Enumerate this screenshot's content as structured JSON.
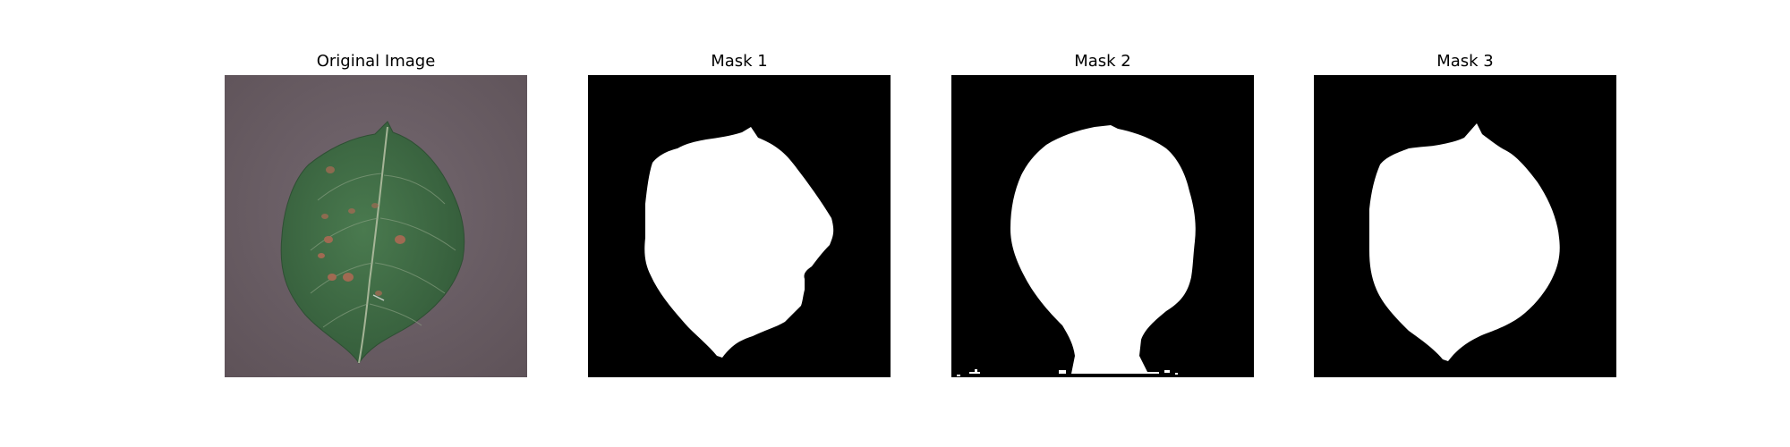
{
  "panels": [
    {
      "title": "Original Image",
      "kind": "photo"
    },
    {
      "title": "Mask 1",
      "kind": "mask"
    },
    {
      "title": "Mask 2",
      "kind": "mask"
    },
    {
      "title": "Mask 3",
      "kind": "mask"
    }
  ],
  "colors": {
    "background": "#ffffff",
    "mask_background": "#000000",
    "mask_foreground": "#ffffff",
    "photo_background": "#6a5d63",
    "leaf_green": "#3f6b44",
    "leaf_vein": "#b7c2a6",
    "leaf_spot": "#a06a52"
  }
}
